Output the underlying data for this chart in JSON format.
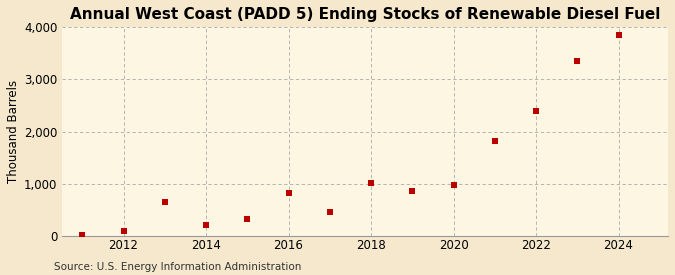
{
  "title": "Annual West Coast (PADD 5) Ending Stocks of Renewable Diesel Fuel",
  "ylabel": "Thousand Barrels",
  "source": "Source: U.S. Energy Information Administration",
  "background_color": "#f5e8cc",
  "plot_bg_color": "#fdf6e3",
  "years": [
    2011,
    2012,
    2013,
    2014,
    2015,
    2016,
    2017,
    2018,
    2019,
    2020,
    2021,
    2022,
    2023,
    2024
  ],
  "values": [
    10,
    100,
    650,
    205,
    330,
    820,
    460,
    1020,
    860,
    980,
    1820,
    2400,
    3350,
    3850
  ],
  "marker_color": "#bb0000",
  "marker": "s",
  "marker_size": 4,
  "ylim": [
    0,
    4000
  ],
  "yticks": [
    0,
    1000,
    2000,
    3000,
    4000
  ],
  "xlim": [
    2010.5,
    2025.2
  ],
  "xticks": [
    2012,
    2014,
    2016,
    2018,
    2020,
    2022,
    2024
  ],
  "grid_color": "#aaaaaa",
  "title_fontsize": 11,
  "axis_fontsize": 8.5,
  "source_fontsize": 7.5
}
